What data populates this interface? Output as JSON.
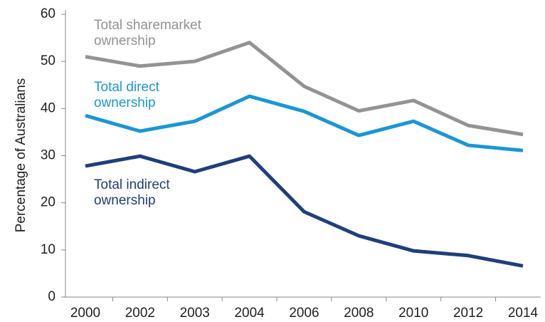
{
  "chart_data": {
    "type": "line",
    "y_label": "Percentage of Australians",
    "categories": [
      "2000",
      "2002",
      "2003",
      "2004",
      "2006",
      "2008",
      "2010",
      "2012",
      "2014"
    ],
    "series": [
      {
        "name": "Total sharemarket ownership",
        "color": "#939393",
        "values": [
          51,
          49,
          50,
          54,
          44.7,
          39.5,
          41.7,
          36.4,
          34.5
        ]
      },
      {
        "name": "Total direct ownership",
        "color": "#1a96d4",
        "values": [
          38.5,
          35.2,
          37.3,
          42.6,
          39.4,
          34.3,
          37.3,
          32.2,
          31.1
        ]
      },
      {
        "name": "Total indirect ownership",
        "color": "#1f3f7a",
        "values": [
          27.8,
          29.9,
          26.6,
          29.9,
          18.1,
          13,
          9.8,
          8.8,
          6.6
        ]
      }
    ],
    "ylim": [
      0,
      60
    ],
    "yticks": [
      0,
      10,
      20,
      30,
      40,
      50,
      60
    ],
    "grid": false
  }
}
